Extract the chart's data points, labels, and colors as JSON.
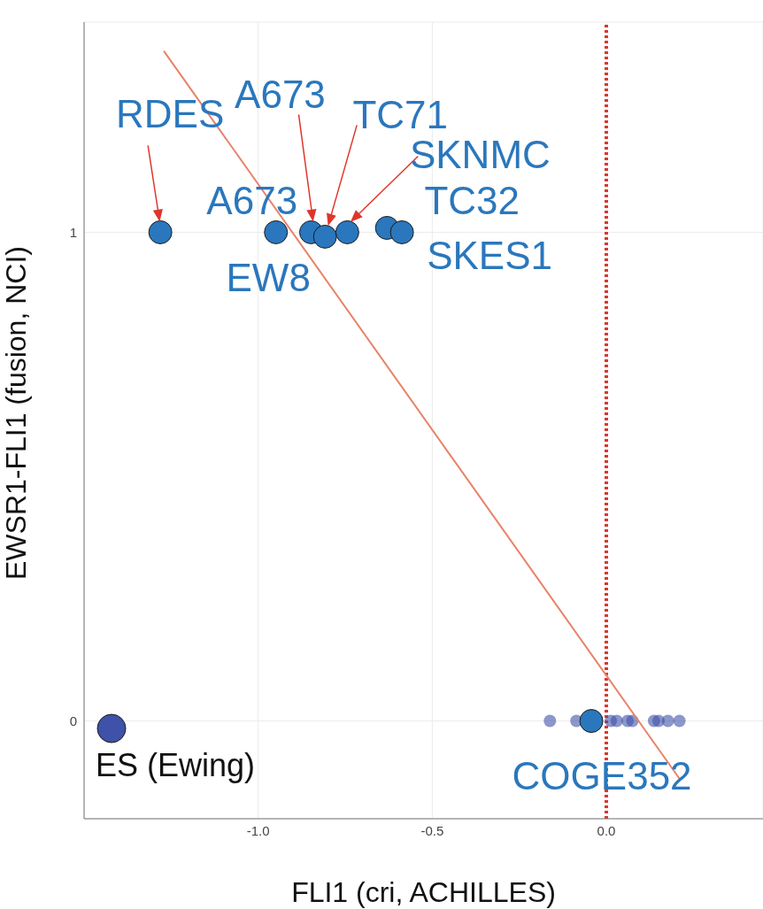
{
  "chart_data": {
    "type": "scatter",
    "xlabel": "FLI1 (cri, ACHILLES)",
    "ylabel": "EWSR1-FLI1 (fusion, NCI)",
    "xlim": [
      -1.5,
      0.45
    ],
    "ylim": [
      -0.2,
      1.43
    ],
    "xticks": [
      {
        "value": -1,
        "label": "-1.0"
      },
      {
        "value": -0.5,
        "label": "-0.5"
      },
      {
        "value": 0,
        "label": "0.0"
      }
    ],
    "yticks": [
      0,
      1
    ],
    "grid": true,
    "legend": "bottom left",
    "marker": "circle",
    "series": [
      {
        "name": "ES (Ewing)",
        "color": "#3f51a8",
        "x": [
          -0.162,
          -0.086,
          0.013,
          0.03,
          0.061,
          0.075,
          0.137,
          0.15,
          0.177,
          0.21
        ],
        "values": [
          0,
          0,
          0,
          0,
          0,
          0,
          0,
          0,
          0,
          0
        ]
      },
      {
        "color": "#2a77bd",
        "x": [
          -1.281,
          -0.949,
          -0.848,
          -0.808,
          -0.744,
          -0.63,
          -0.587,
          -0.043
        ],
        "values": [
          1,
          1,
          1,
          0.991,
          1,
          1.009,
          1,
          0
        ]
      },
      {
        "type": "line",
        "marker": "none",
        "color": "#e8826a",
        "x": [
          -1.271,
          0.21
        ],
        "values": [
          1.371,
          -0.118
        ]
      }
    ],
    "ref_lines": [
      {
        "axis": "x",
        "value": 0,
        "color": "#e0352b",
        "line_style": "dotted"
      }
    ],
    "annotations": [
      {
        "text": "RDES",
        "x": -1.281,
        "y": 1
      },
      {
        "text": "A673",
        "x": -0.949,
        "y": 1
      },
      {
        "text": "A673",
        "x": -0.848,
        "y": 1
      },
      {
        "text": "EW8",
        "x": -0.808,
        "y": 0.991
      },
      {
        "text": "TC71",
        "x": -0.808,
        "y": 0.991
      },
      {
        "text": "SKNMC",
        "x": -0.744,
        "y": 1
      },
      {
        "text": "TC32",
        "x": -0.63,
        "y": 1.009
      },
      {
        "text": "SKES1",
        "x": -0.587,
        "y": 1
      },
      {
        "text": "COGE352",
        "x": -0.043,
        "y": 0
      }
    ]
  }
}
